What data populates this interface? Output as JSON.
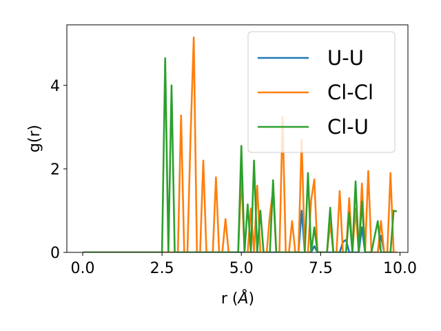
{
  "chart_data": {
    "type": "line",
    "title": "",
    "xlabel": "r (",
    "xlabel_unit": "Å",
    "xlabel_close": ")",
    "ylabel": "g(r)",
    "xlim": [
      -0.5,
      10.25
    ],
    "ylim": [
      0,
      5.45
    ],
    "xticks": [
      0.0,
      2.5,
      5.0,
      7.5,
      10.0
    ],
    "xtick_labels": [
      "0.0",
      "2.5",
      "5.0",
      "7.5",
      "10.0"
    ],
    "yticks": [
      0,
      2,
      4
    ],
    "ytick_labels": [
      "0",
      "2",
      "4"
    ],
    "grid": false,
    "legend_placement": "top-right",
    "series": [
      {
        "name": "U-U",
        "color": "#1f77b4",
        "x": [
          0,
          0.5,
          1,
          1.5,
          2,
          2.5,
          3,
          3.5,
          4,
          4.5,
          5,
          5.5,
          6,
          6.5,
          6.8,
          6.9,
          7.0,
          7.1,
          7.2,
          7.3,
          7.4,
          7.5,
          7.6,
          7.7,
          7.8,
          7.9,
          8.0,
          8.1,
          8.2,
          8.3,
          8.4,
          8.5,
          8.6,
          8.7,
          8.8,
          8.9,
          9.0,
          9.1,
          9.2,
          9.3,
          9.4,
          9.5,
          9.6,
          9.7,
          9.8,
          9.9
        ],
        "y": [
          0,
          0,
          0,
          0,
          0,
          0,
          0,
          0,
          0,
          0,
          0,
          0,
          0,
          0,
          0,
          1.0,
          0,
          0,
          0,
          0.15,
          0,
          0,
          0,
          0,
          0,
          0,
          0,
          0,
          0.25,
          0.3,
          0,
          0,
          0,
          0,
          0.6,
          0,
          0,
          0,
          0,
          0,
          0.4,
          0,
          0,
          0,
          0,
          0
        ]
      },
      {
        "name": "Cl-Cl",
        "color": "#ff7f0e",
        "x": [
          0,
          1,
          2,
          2.9,
          3.0,
          3.1,
          3.2,
          3.3,
          3.4,
          3.5,
          3.6,
          3.7,
          3.8,
          3.9,
          4.0,
          4.1,
          4.2,
          4.3,
          4.4,
          4.5,
          4.6,
          4.7,
          4.8,
          4.9,
          5.0,
          5.1,
          5.2,
          5.3,
          5.4,
          5.5,
          5.6,
          5.7,
          5.8,
          5.9,
          6.0,
          6.1,
          6.2,
          6.3,
          6.4,
          6.5,
          6.6,
          6.7,
          6.8,
          6.9,
          7.0,
          7.1,
          7.2,
          7.3,
          7.4,
          7.5,
          7.6,
          7.7,
          7.8,
          7.9,
          8.0,
          8.1,
          8.2,
          8.3,
          8.4,
          8.5,
          8.6,
          8.7,
          8.8,
          8.9,
          9.0,
          9.1,
          9.2,
          9.3,
          9.4,
          9.5,
          9.6,
          9.7,
          9.8,
          9.9
        ],
        "y": [
          0,
          0,
          0,
          0,
          0,
          3.28,
          0,
          0,
          2.8,
          5.15,
          0,
          0,
          2.2,
          0,
          0,
          0,
          1.8,
          0,
          0,
          0.8,
          0,
          0,
          0,
          0,
          1.85,
          0,
          0,
          1.05,
          0,
          1.6,
          0,
          0,
          0,
          0.9,
          1.5,
          0,
          0,
          3.25,
          0,
          0,
          0.75,
          0,
          0,
          2.7,
          0,
          0,
          1.25,
          1.75,
          0,
          0,
          0,
          0,
          0.7,
          0,
          0,
          1.47,
          0,
          0,
          1.3,
          0,
          1.05,
          0,
          1.65,
          0,
          1.95,
          0,
          0,
          0,
          0.75,
          0,
          0,
          1.9,
          0,
          0
        ]
      },
      {
        "name": "Cl-U",
        "color": "#2ca02c",
        "x": [
          0,
          1,
          2,
          2.5,
          2.6,
          2.7,
          2.8,
          2.9,
          3.0,
          4.9,
          5.0,
          5.1,
          5.2,
          5.3,
          5.4,
          5.5,
          5.6,
          5.7,
          5.8,
          5.9,
          6.0,
          6.1,
          6.2,
          6.3,
          6.4,
          6.5,
          6.6,
          6.7,
          6.8,
          6.9,
          7.0,
          7.1,
          7.2,
          7.3,
          7.4,
          7.5,
          7.6,
          7.7,
          7.8,
          7.9,
          8.0,
          8.1,
          8.2,
          8.3,
          8.4,
          8.5,
          8.6,
          8.7,
          8.8,
          8.9,
          9.0,
          9.1,
          9.2,
          9.3,
          9.4,
          9.5,
          9.6,
          9.7,
          9.8,
          9.9
        ],
        "y": [
          0,
          0,
          0,
          0,
          4.65,
          0,
          4.0,
          0,
          0,
          0,
          2.55,
          0,
          1.15,
          0,
          2.2,
          0,
          1.0,
          0,
          0,
          0,
          1.73,
          0,
          0,
          0,
          0,
          0,
          0,
          0,
          0,
          0,
          0,
          1.9,
          0,
          0.6,
          0,
          0,
          0,
          0,
          1.07,
          0,
          0,
          0,
          0,
          0,
          0.95,
          0,
          1.7,
          0,
          1.22,
          0,
          0,
          0,
          0.38,
          0.75,
          0,
          0,
          0,
          0,
          1.0,
          0.98
        ]
      }
    ]
  }
}
